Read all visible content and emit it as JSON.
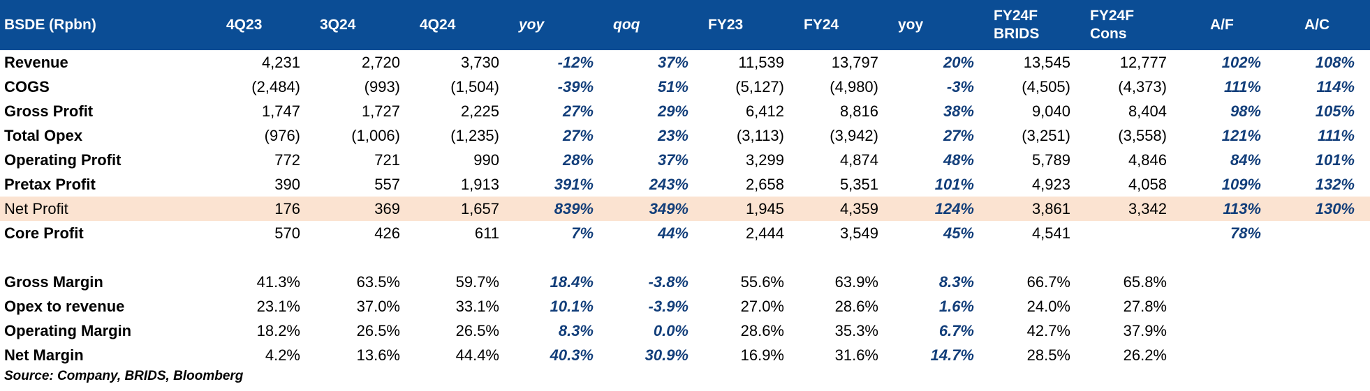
{
  "header": [
    "BSDE (Rpbn)",
    "4Q23",
    "3Q24",
    "4Q24",
    "yoy",
    "qoq",
    "FY23",
    "FY24",
    "yoy",
    [
      "FY24F",
      "BRIDS"
    ],
    [
      "FY24F",
      "Cons"
    ],
    "A/F",
    "A/C"
  ],
  "rows": [
    [
      "Revenue",
      "4,231",
      "2,720",
      "3,730",
      "-12%",
      "37%",
      "11,539",
      "13,797",
      "20%",
      "13,545",
      "12,777",
      "102%",
      "108%"
    ],
    [
      "COGS",
      "(2,484)",
      "(993)",
      "(1,504)",
      "-39%",
      "51%",
      "(5,127)",
      "(4,980)",
      "-3%",
      "(4,505)",
      "(4,373)",
      "111%",
      "114%"
    ],
    [
      "Gross Profit",
      "1,747",
      "1,727",
      "2,225",
      "27%",
      "29%",
      "6,412",
      "8,816",
      "38%",
      "9,040",
      "8,404",
      "98%",
      "105%"
    ],
    [
      "Total Opex",
      "(976)",
      "(1,006)",
      "(1,235)",
      "27%",
      "23%",
      "(3,113)",
      "(3,942)",
      "27%",
      "(3,251)",
      "(3,558)",
      "121%",
      "111%"
    ],
    [
      "Operating Profit",
      "772",
      "721",
      "990",
      "28%",
      "37%",
      "3,299",
      "4,874",
      "48%",
      "5,789",
      "4,846",
      "84%",
      "101%"
    ],
    [
      "Pretax Profit",
      "390",
      "557",
      "1,913",
      "391%",
      "243%",
      "2,658",
      "5,351",
      "101%",
      "4,923",
      "4,058",
      "109%",
      "132%"
    ],
    [
      "Net Profit",
      "176",
      "369",
      "1,657",
      "839%",
      "349%",
      "1,945",
      "4,359",
      "124%",
      "3,861",
      "3,342",
      "113%",
      "130%"
    ],
    [
      "Core Profit",
      "570",
      "426",
      "611",
      "7%",
      "44%",
      "2,444",
      "3,549",
      "45%",
      "4,541",
      "",
      "78%",
      ""
    ]
  ],
  "margin_rows": [
    [
      "Gross Margin",
      "41.3%",
      "63.5%",
      "59.7%",
      "18.4%",
      "-3.8%",
      "55.6%",
      "63.9%",
      "8.3%",
      "66.7%",
      "65.8%",
      "",
      ""
    ],
    [
      "Opex to revenue",
      "23.1%",
      "37.0%",
      "33.1%",
      "10.1%",
      "-3.9%",
      "27.0%",
      "28.6%",
      "1.6%",
      "24.0%",
      "27.8%",
      "",
      ""
    ],
    [
      "Operating Margin",
      "18.2%",
      "26.5%",
      "26.5%",
      "8.3%",
      "0.0%",
      "28.6%",
      "35.3%",
      "6.7%",
      "42.7%",
      "37.9%",
      "",
      ""
    ],
    [
      "Net Margin",
      "4.2%",
      "13.6%",
      "44.4%",
      "40.3%",
      "30.9%",
      "16.9%",
      "31.6%",
      "14.7%",
      "28.5%",
      "26.2%",
      "",
      ""
    ]
  ],
  "highlighted_row": "Net Profit",
  "source": "Source: Company, BRIDS, Bloomberg",
  "colors": {
    "header_bg": "#0b4d95",
    "header_text": "#ffffff",
    "italic_text": "#123e7a",
    "highlight_bg": "#fbe3d1"
  }
}
